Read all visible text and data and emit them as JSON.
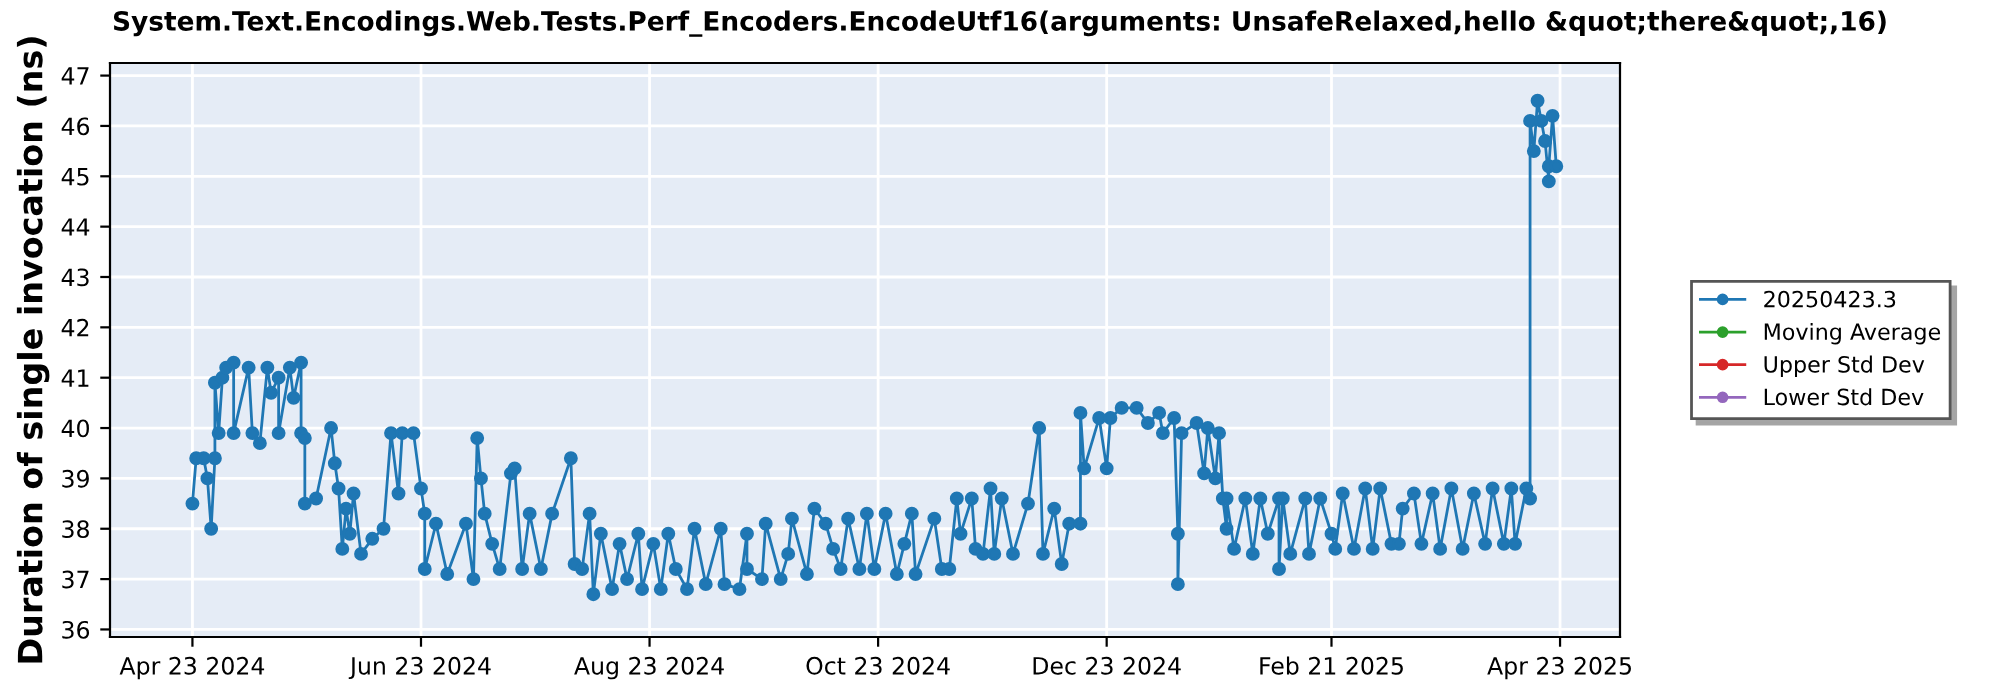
{
  "chart_data": {
    "type": "line",
    "title": "System.Text.Encodings.Web.Tests.Perf_Encoders.EncodeUtf16(arguments: UnsafeRelaxed,hello &quot;there&quot;,16)",
    "ylabel": "Duration of single invocation (ns)",
    "xlim": [
      "2024-04-01",
      "2025-05-09"
    ],
    "xticks": [
      {
        "value": "2024-04-23",
        "label": "Apr 23 2024"
      },
      {
        "value": "2024-06-23",
        "label": "Jun 23 2024"
      },
      {
        "value": "2024-08-23",
        "label": "Aug 23 2024"
      },
      {
        "value": "2024-10-23",
        "label": "Oct 23 2024"
      },
      {
        "value": "2024-12-23",
        "label": "Dec 23 2024"
      },
      {
        "value": "2025-02-21",
        "label": "Feb 21 2025"
      },
      {
        "value": "2025-04-23",
        "label": "Apr 23 2025"
      }
    ],
    "ylim": [
      35.85,
      47.25
    ],
    "yticks": [
      36,
      37,
      38,
      39,
      40,
      41,
      42,
      43,
      44,
      45,
      46,
      47
    ],
    "grid": true,
    "legend": "right",
    "marker": "circle",
    "line_style": "solid",
    "series": [
      {
        "name": "20250423.3",
        "color": "#1f77b4",
        "x": [
          "2024-04-23",
          "2024-04-24",
          "2024-04-26",
          "2024-04-27",
          "2024-04-28",
          "2024-04-29",
          "2024-04-29",
          "2024-04-30",
          "2024-05-01",
          "2024-05-02",
          "2024-05-04",
          "2024-05-04",
          "2024-05-08",
          "2024-05-09",
          "2024-05-11",
          "2024-05-13",
          "2024-05-14",
          "2024-05-16",
          "2024-05-16",
          "2024-05-19",
          "2024-05-20",
          "2024-05-22",
          "2024-05-22",
          "2024-05-23",
          "2024-05-23",
          "2024-05-26",
          "2024-05-30",
          "2024-05-31",
          "2024-06-01",
          "2024-06-02",
          "2024-06-03",
          "2024-06-04",
          "2024-06-05",
          "2024-06-07",
          "2024-06-10",
          "2024-06-13",
          "2024-06-15",
          "2024-06-17",
          "2024-06-18",
          "2024-06-21",
          "2024-06-23",
          "2024-06-24",
          "2024-06-24",
          "2024-06-27",
          "2024-06-30",
          "2024-07-05",
          "2024-07-07",
          "2024-07-08",
          "2024-07-09",
          "2024-07-10",
          "2024-07-12",
          "2024-07-14",
          "2024-07-17",
          "2024-07-18",
          "2024-07-20",
          "2024-07-22",
          "2024-07-25",
          "2024-07-28",
          "2024-08-02",
          "2024-08-03",
          "2024-08-05",
          "2024-08-07",
          "2024-08-08",
          "2024-08-10",
          "2024-08-13",
          "2024-08-15",
          "2024-08-17",
          "2024-08-20",
          "2024-08-21",
          "2024-08-24",
          "2024-08-26",
          "2024-08-28",
          "2024-08-30",
          "2024-09-02",
          "2024-09-04",
          "2024-09-07",
          "2024-09-11",
          "2024-09-12",
          "2024-09-16",
          "2024-09-18",
          "2024-09-18",
          "2024-09-22",
          "2024-09-23",
          "2024-09-27",
          "2024-09-29",
          "2024-09-30",
          "2024-10-04",
          "2024-10-06",
          "2024-10-09",
          "2024-10-11",
          "2024-10-13",
          "2024-10-15",
          "2024-10-18",
          "2024-10-20",
          "2024-10-22",
          "2024-10-25",
          "2024-10-28",
          "2024-10-30",
          "2024-11-01",
          "2024-11-02",
          "2024-11-07",
          "2024-11-09",
          "2024-11-11",
          "2024-11-13",
          "2024-11-14",
          "2024-11-17",
          "2024-11-18",
          "2024-11-20",
          "2024-11-22",
          "2024-11-23",
          "2024-11-25",
          "2024-11-28",
          "2024-12-02",
          "2024-12-05",
          "2024-12-06",
          "2024-12-09",
          "2024-12-11",
          "2024-12-13",
          "2024-12-16",
          "2024-12-16",
          "2024-12-17",
          "2024-12-21",
          "2024-12-23",
          "2024-12-24",
          "2024-12-27",
          "2024-12-31",
          "2025-01-03",
          "2025-01-06",
          "2025-01-07",
          "2025-01-10",
          "2025-01-11",
          "2025-01-11",
          "2025-01-12",
          "2025-01-16",
          "2025-01-18",
          "2025-01-19",
          "2025-01-21",
          "2025-01-22",
          "2025-01-23",
          "2025-01-24",
          "2025-01-24",
          "2025-01-26",
          "2025-01-29",
          "2025-01-31",
          "2025-02-02",
          "2025-02-04",
          "2025-02-07",
          "2025-02-07",
          "2025-02-08",
          "2025-02-10",
          "2025-02-14",
          "2025-02-15",
          "2025-02-18",
          "2025-02-21",
          "2025-02-22",
          "2025-02-24",
          "2025-02-27",
          "2025-03-02",
          "2025-03-04",
          "2025-03-06",
          "2025-03-09",
          "2025-03-11",
          "2025-03-12",
          "2025-03-15",
          "2025-03-17",
          "2025-03-20",
          "2025-03-22",
          "2025-03-25",
          "2025-03-28",
          "2025-03-31",
          "2025-04-03",
          "2025-04-05",
          "2025-04-08",
          "2025-04-10",
          "2025-04-11",
          "2025-04-14",
          "2025-04-15",
          "2025-04-15",
          "2025-04-16",
          "2025-04-17",
          "2025-04-18",
          "2025-04-19",
          "2025-04-20",
          "2025-04-20",
          "2025-04-21",
          "2025-04-22"
        ],
        "values": [
          38.5,
          39.4,
          39.4,
          39.0,
          38.0,
          39.4,
          40.9,
          39.9,
          41.0,
          41.2,
          41.3,
          39.9,
          41.2,
          39.9,
          39.7,
          41.2,
          40.7,
          41.0,
          39.9,
          41.2,
          40.6,
          41.3,
          39.9,
          39.8,
          38.5,
          38.6,
          40.0,
          39.3,
          38.8,
          37.6,
          38.4,
          37.9,
          38.7,
          37.5,
          37.8,
          38.0,
          39.9,
          38.7,
          39.9,
          39.9,
          38.8,
          38.3,
          37.2,
          38.1,
          37.1,
          38.1,
          37.0,
          39.8,
          39.0,
          38.3,
          37.7,
          37.2,
          39.1,
          39.2,
          37.2,
          38.3,
          37.2,
          38.3,
          39.4,
          37.3,
          37.2,
          38.3,
          36.7,
          37.9,
          36.8,
          37.7,
          37.0,
          37.9,
          36.8,
          37.7,
          36.8,
          37.9,
          37.2,
          36.8,
          38.0,
          36.9,
          38.0,
          36.9,
          36.8,
          37.9,
          37.2,
          37.0,
          38.1,
          37.0,
          37.5,
          38.2,
          37.1,
          38.4,
          38.1,
          37.6,
          37.2,
          38.2,
          37.2,
          38.3,
          37.2,
          38.3,
          37.1,
          37.7,
          38.3,
          37.1,
          38.2,
          37.2,
          37.2,
          38.6,
          37.9,
          38.6,
          37.6,
          37.5,
          38.8,
          37.5,
          38.6,
          37.5,
          38.5,
          40.0,
          37.5,
          38.4,
          37.3,
          38.1,
          38.1,
          40.3,
          39.2,
          40.2,
          39.2,
          40.2,
          40.4,
          40.4,
          40.1,
          40.3,
          39.9,
          40.2,
          37.9,
          36.9,
          39.9,
          40.1,
          39.1,
          40.0,
          39.0,
          39.9,
          38.6,
          38.0,
          38.6,
          37.6,
          38.6,
          37.5,
          38.6,
          37.9,
          38.6,
          37.2,
          38.6,
          37.5,
          38.6,
          37.5,
          38.6,
          37.9,
          37.6,
          38.7,
          37.6,
          38.8,
          37.6,
          38.8,
          37.7,
          37.7,
          38.4,
          38.7,
          37.7,
          38.7,
          37.6,
          38.8,
          37.6,
          38.7,
          37.7,
          38.8,
          37.7,
          38.8,
          37.7,
          38.8,
          38.6,
          46.1,
          45.5,
          46.5,
          46.1,
          45.7,
          44.9,
          45.2,
          46.2,
          45.2
        ]
      },
      {
        "name": "Moving Average",
        "color": "#2ca02c"
      },
      {
        "name": "Upper Std Dev",
        "color": "#d62728"
      },
      {
        "name": "Lower Std Dev",
        "color": "#9467bd"
      }
    ]
  }
}
